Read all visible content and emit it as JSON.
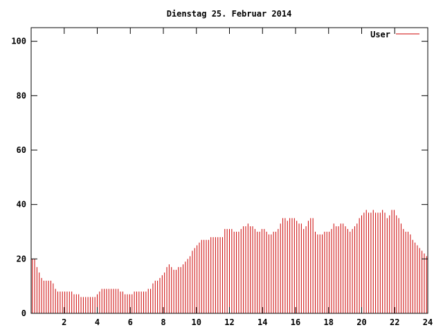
{
  "colors": {
    "series": "#cc0000",
    "axis": "#000000",
    "background": "#ffffff"
  },
  "chart_data": {
    "type": "bar",
    "title": "Dienstag 25. Februar 2014",
    "xlabel": "",
    "ylabel": "",
    "xlim": [
      0,
      24
    ],
    "ylim": [
      0,
      105
    ],
    "grid": false,
    "legend_position": "top-right",
    "x_ticks": [
      "2",
      "4",
      "6",
      "8",
      "10",
      "12",
      "14",
      "16",
      "18",
      "20",
      "22",
      "24"
    ],
    "y_ticks": [
      "0",
      "20",
      "40",
      "60",
      "80",
      "100"
    ],
    "series": [
      {
        "name": "User",
        "values": [
          20,
          20,
          17,
          15,
          13,
          12,
          12,
          12,
          12,
          11,
          9,
          8,
          8,
          8,
          8,
          8,
          8,
          8,
          7,
          7,
          7,
          6,
          6,
          6,
          6,
          6,
          6,
          6,
          7,
          8,
          9,
          9,
          9,
          9,
          9,
          9,
          9,
          9,
          8,
          8,
          7,
          7,
          7,
          7,
          8,
          8,
          8,
          8,
          8,
          8,
          9,
          9,
          11,
          12,
          12,
          13,
          14,
          15,
          17,
          18,
          17,
          16,
          16,
          17,
          17,
          18,
          19,
          20,
          21,
          23,
          24,
          25,
          26,
          27,
          27,
          27,
          27,
          28,
          28,
          28,
          28,
          28,
          28,
          31,
          31,
          31,
          31,
          30,
          30,
          30,
          31,
          32,
          32,
          33,
          32,
          32,
          31,
          30,
          30,
          31,
          31,
          30,
          29,
          29,
          30,
          30,
          31,
          33,
          35,
          35,
          34,
          35,
          35,
          35,
          34,
          33,
          33,
          31,
          32,
          34,
          35,
          35,
          30,
          29,
          29,
          29,
          30,
          30,
          30,
          31,
          33,
          32,
          32,
          33,
          33,
          32,
          31,
          30,
          31,
          32,
          33,
          35,
          36,
          37,
          38,
          37,
          37,
          38,
          37,
          37,
          37,
          38,
          37,
          35,
          36,
          38,
          38,
          36,
          35,
          33,
          31,
          30,
          30,
          29,
          27,
          26,
          25,
          24,
          23,
          22,
          21
        ]
      }
    ]
  }
}
